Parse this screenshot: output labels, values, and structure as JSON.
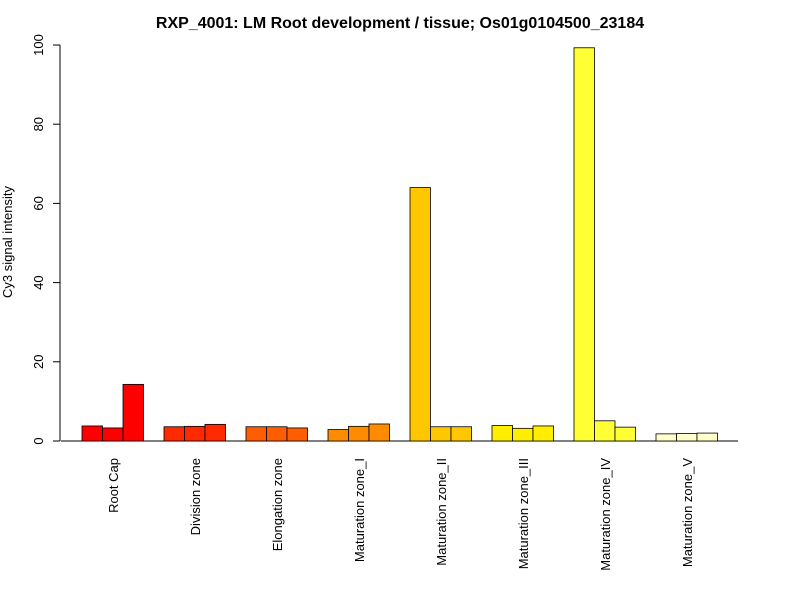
{
  "chart_data": {
    "type": "bar",
    "title": "RXP_4001: LM Root development / tissue; Os01g0104500_23184",
    "xlabel": "",
    "ylabel": "Cy3 signal intensity",
    "ylim": [
      0,
      100
    ],
    "yticks": [
      0,
      20,
      40,
      60,
      80,
      100
    ],
    "grid": false,
    "legend": "none",
    "categories": [
      "Root Cap",
      "Division zone",
      "Elongation zone",
      "Maturation zone_I",
      "Maturation zone_II",
      "Maturation zone_III",
      "Maturation zone_IV",
      "Maturation zone_V"
    ],
    "values": [
      [
        3.8,
        3.3,
        14.3
      ],
      [
        3.6,
        3.7,
        4.2
      ],
      [
        3.6,
        3.6,
        3.3
      ],
      [
        2.9,
        3.7,
        4.3
      ],
      [
        64.0,
        3.6,
        3.6
      ],
      [
        3.9,
        3.2,
        3.8
      ],
      [
        99.3,
        5.1,
        3.5
      ],
      [
        1.8,
        1.9,
        2.0
      ]
    ],
    "colors": [
      "#ff0000",
      "#ff2a00",
      "#ff5d00",
      "#ff8c00",
      "#ffc700",
      "#ffee00",
      "#ffff33",
      "#ffffcc"
    ]
  }
}
